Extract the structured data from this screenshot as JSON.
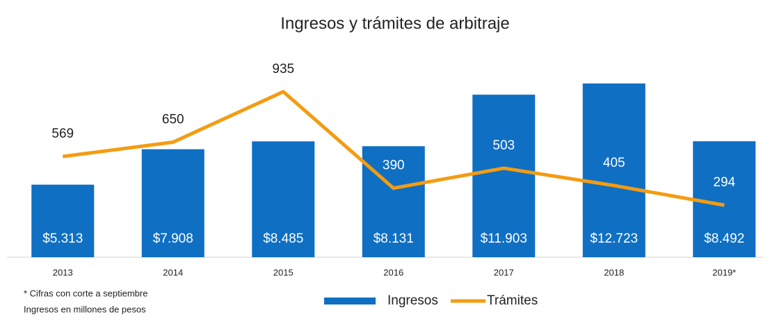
{
  "chart_data": {
    "type": "bar_line",
    "title": "Ingresos y trámites de arbitraje",
    "categories": [
      "2013",
      "2014",
      "2015",
      "2016",
      "2017",
      "2018",
      "2019*"
    ],
    "series": [
      {
        "name": "Ingresos",
        "type": "bar",
        "color": "#0f6fc3",
        "values": [
          5313,
          7908,
          8485,
          8131,
          11903,
          12723,
          8492
        ],
        "value_labels": [
          "$5.313",
          "$7.908",
          "$8.485",
          "$8.131",
          "$11.903",
          "$12.723",
          "$8.492"
        ]
      },
      {
        "name": "Trámites",
        "type": "line",
        "axis": "y2",
        "color": "#f39c12",
        "values": [
          569,
          650,
          935,
          390,
          503,
          405,
          294
        ]
      }
    ],
    "ylim": [
      0,
      14000
    ],
    "y2lim": [
      0,
      1080
    ],
    "legend": "bottom",
    "annotations": [
      "* Cifras con corte a septiembre",
      "Ingresos en millones de pesos"
    ]
  }
}
